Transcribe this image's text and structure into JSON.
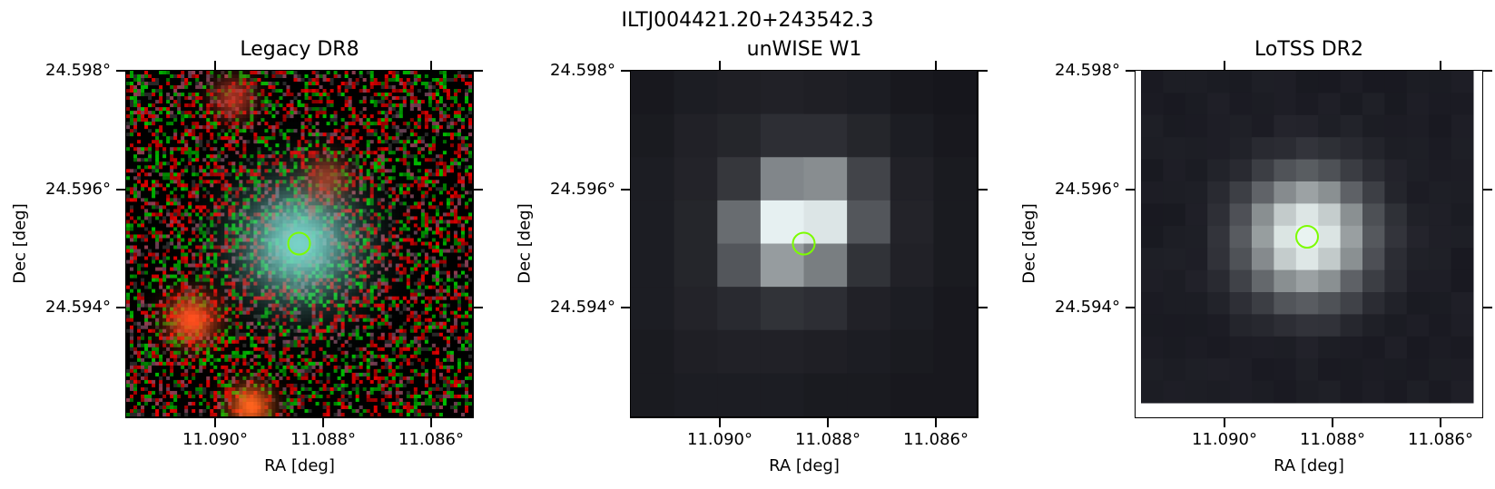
{
  "figure": {
    "suptitle": "ILTJ004421.20+243542.3"
  },
  "panels": [
    {
      "title": "Legacy DR8",
      "image_type": "optical-rgb-cutout",
      "xlabel": "RA [deg]",
      "ylabel": "Dec [deg]",
      "xticks": [
        "11.090°",
        "11.088°",
        "11.086°"
      ],
      "yticks": [
        "24.598°",
        "24.596°",
        "24.594°"
      ],
      "marker": "circle",
      "marker_color": "#7cfc00"
    },
    {
      "title": "unWISE W1",
      "image_type": "infrared-grayscale-cutout",
      "xlabel": "RA [deg]",
      "ylabel": "Dec [deg]",
      "xticks": [
        "11.090°",
        "11.088°",
        "11.086°"
      ],
      "yticks": [
        "24.598°",
        "24.596°",
        "24.594°"
      ],
      "marker": "circle",
      "marker_color": "#7cfc00"
    },
    {
      "title": "LoTSS DR2",
      "image_type": "radio-grayscale-cutout",
      "xlabel": "RA [deg]",
      "ylabel": "Dec [deg]",
      "xticks": [
        "11.090°",
        "11.088°",
        "11.086°"
      ],
      "yticks": [
        "24.598°",
        "24.596°",
        "24.594°"
      ],
      "marker": "circle",
      "marker_color": "#7cfc00"
    }
  ]
}
